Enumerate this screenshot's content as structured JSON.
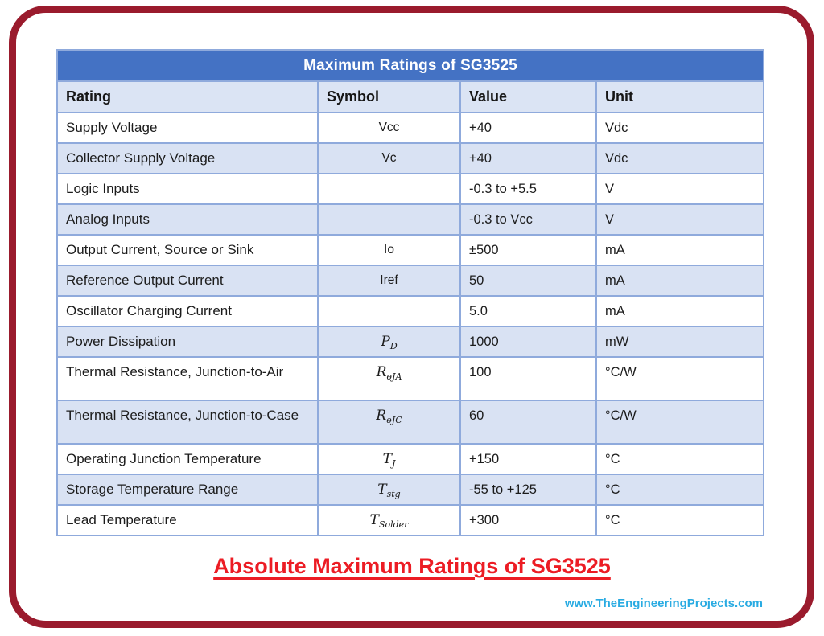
{
  "table": {
    "title": "Maximum Ratings of SG3525",
    "columns": [
      "Rating",
      "Symbol",
      "Value",
      "Unit"
    ],
    "rows": [
      {
        "rating": "Supply Voltage",
        "symbol": {
          "text": "Vcc",
          "sub": "",
          "math": false
        },
        "value": "+40",
        "unit": "Vdc",
        "tall": false
      },
      {
        "rating": "Collector Supply Voltage",
        "symbol": {
          "text": "Vc",
          "sub": "",
          "math": false
        },
        "value": "+40",
        "unit": "Vdc",
        "tall": false
      },
      {
        "rating": "Logic Inputs",
        "symbol": {
          "text": "",
          "sub": "",
          "math": false
        },
        "value": "-0.3 to +5.5",
        "unit": "V",
        "tall": false
      },
      {
        "rating": "Analog Inputs",
        "symbol": {
          "text": "",
          "sub": "",
          "math": false
        },
        "value": "-0.3 to Vcc",
        "unit": "V",
        "tall": false
      },
      {
        "rating": "Output Current, Source or Sink",
        "symbol": {
          "text": "Io",
          "sub": "",
          "math": false
        },
        "value": "±500",
        "unit": "mA",
        "tall": false
      },
      {
        "rating": "Reference Output Current",
        "symbol": {
          "text": "Iref",
          "sub": "",
          "math": false
        },
        "value": "50",
        "unit": "mA",
        "tall": false
      },
      {
        "rating": "Oscillator Charging Current",
        "symbol": {
          "text": "",
          "sub": "",
          "math": false
        },
        "value": "5.0",
        "unit": "mA",
        "tall": false
      },
      {
        "rating": "Power Dissipation",
        "symbol": {
          "text": "P",
          "sub": "D",
          "math": true
        },
        "value": "1000",
        "unit": "mW",
        "tall": false
      },
      {
        "rating": "Thermal Resistance, Junction-to-Air",
        "symbol": {
          "text": "R",
          "sub": "ɵJA",
          "math": true
        },
        "value": "100",
        "unit": "°C/W",
        "tall": true
      },
      {
        "rating": "Thermal Resistance, Junction-to-Case",
        "symbol": {
          "text": "R",
          "sub": "ɵJC",
          "math": true
        },
        "value": "60",
        "unit": "°C/W",
        "tall": true
      },
      {
        "rating": "Operating Junction Temperature",
        "symbol": {
          "text": "T",
          "sub": "J",
          "math": true
        },
        "value": "+150",
        "unit": "°C",
        "tall": false
      },
      {
        "rating": "Storage Temperature Range",
        "symbol": {
          "text": "T",
          "sub": "stg",
          "math": true
        },
        "value": "-55 to +125",
        "unit": "°C",
        "tall": false
      },
      {
        "rating": "Lead Temperature",
        "symbol": {
          "text": "T",
          "sub": "Solder",
          "math": true
        },
        "value": "+300",
        "unit": "°C",
        "tall": false
      }
    ]
  },
  "footer": {
    "title": "Absolute Maximum Ratings of SG3525",
    "website": "www.TheEngineeringProjects.com"
  },
  "colors": {
    "header_blue": "#4472C4",
    "band_blue": "#D9E2F3",
    "cell_border": "#8FAADC",
    "frame_red": "#9A1B2D",
    "caption_red": "#EC1C24",
    "website_blue": "#29ABE2"
  }
}
